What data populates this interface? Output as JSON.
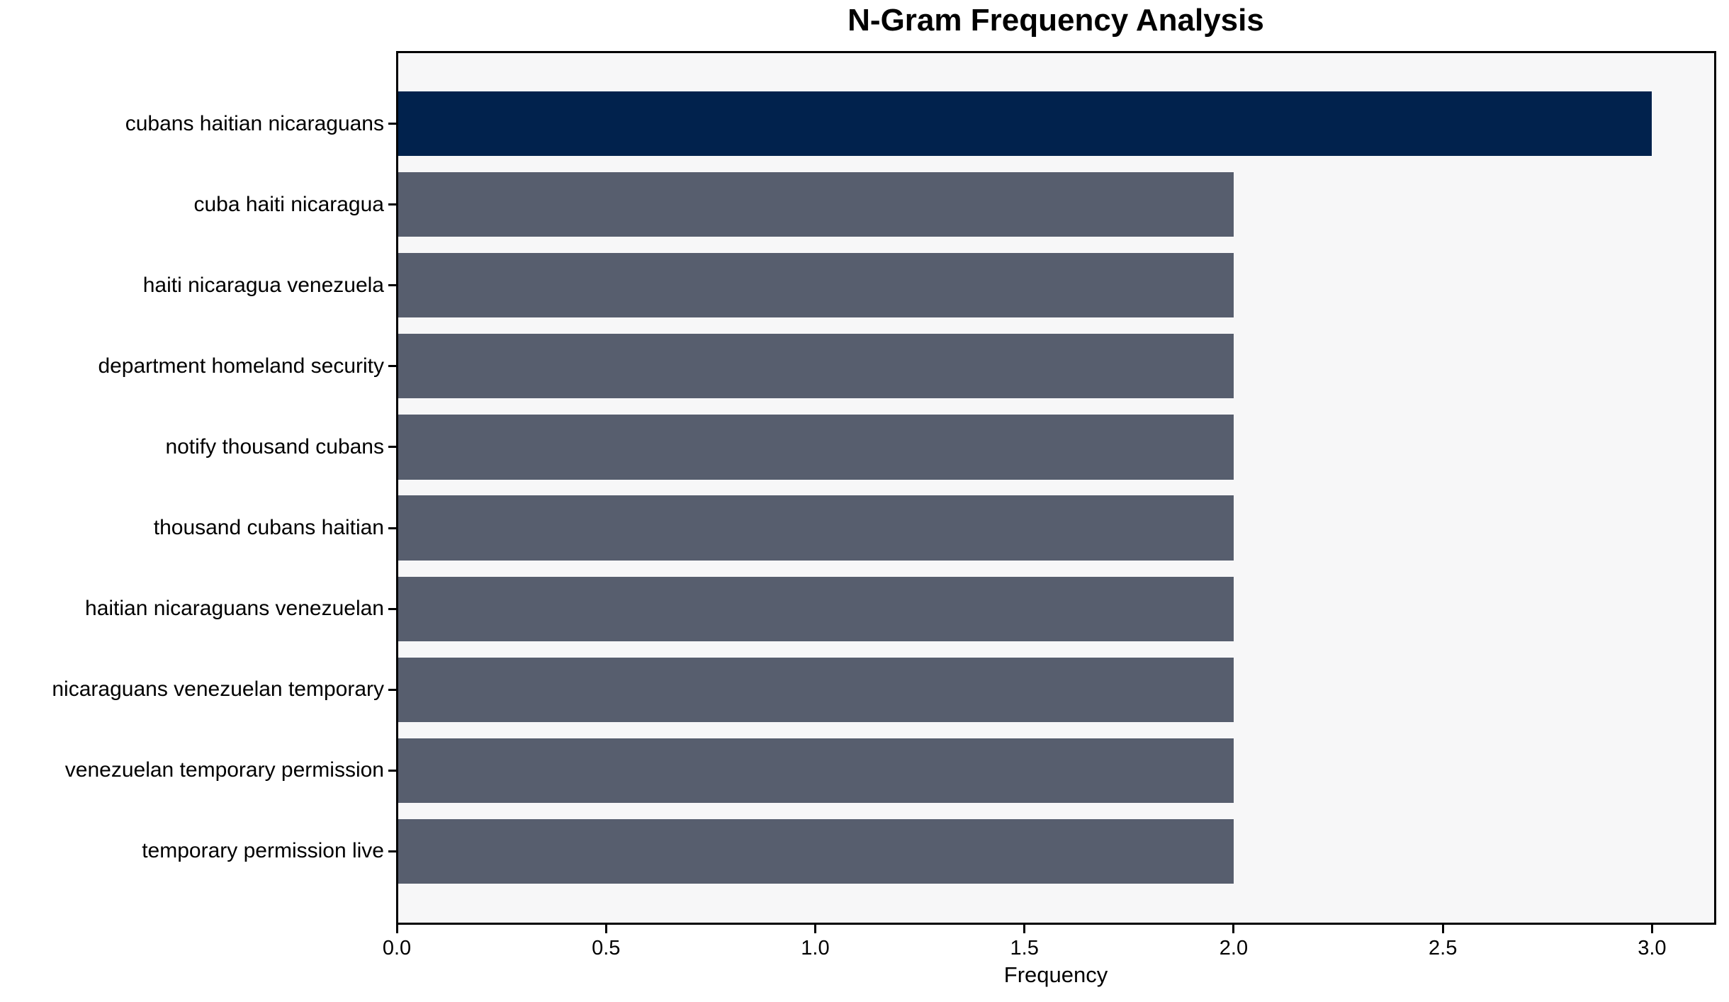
{
  "chart": {
    "title": "N-Gram Frequency Analysis",
    "xlabel": "Frequency"
  },
  "chart_data": {
    "type": "bar",
    "orientation": "horizontal",
    "title": "N-Gram Frequency Analysis",
    "xlabel": "Frequency",
    "ylabel": "",
    "categories": [
      "cubans haitian nicaraguans",
      "cuba haiti nicaragua",
      "haiti nicaragua venezuela",
      "department homeland security",
      "notify thousand cubans",
      "thousand cubans haitian",
      "haitian nicaraguans venezuelan",
      "nicaraguans venezuelan temporary",
      "venezuelan temporary permission",
      "temporary permission live"
    ],
    "values": [
      3,
      2,
      2,
      2,
      2,
      2,
      2,
      2,
      2,
      2
    ],
    "bar_colors": [
      "#01224d",
      "#575e6e",
      "#575e6e",
      "#575e6e",
      "#575e6e",
      "#575e6e",
      "#575e6e",
      "#575e6e",
      "#575e6e",
      "#575e6e"
    ],
    "xlim": [
      0,
      3.15
    ],
    "xticks": [
      0.0,
      0.5,
      1.0,
      1.5,
      2.0,
      2.5,
      3.0
    ],
    "xtick_labels": [
      "0.0",
      "0.5",
      "1.0",
      "1.5",
      "2.0",
      "2.5",
      "3.0"
    ],
    "grid": false,
    "legend": null,
    "colors": {
      "highlight_bar": "#01224d",
      "default_bar": "#575e6e",
      "plot_background": "#f7f7f8",
      "figure_background": "#ffffff",
      "spine": "#000000",
      "text": "#000000"
    }
  }
}
